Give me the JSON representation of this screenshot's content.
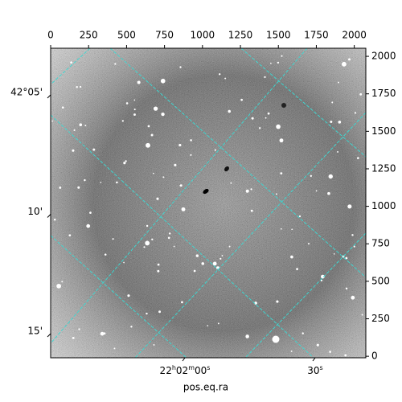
{
  "chart_data": {
    "type": "image",
    "x_label": "pos.eq.ra",
    "xlim": [
      0,
      2076
    ],
    "xticks": [
      0,
      250,
      500,
      750,
      1000,
      1250,
      1500,
      1750,
      2000
    ],
    "ylim": [
      -10,
      2054
    ],
    "yticks": [
      0,
      250,
      500,
      750,
      1000,
      1250,
      1500,
      1750,
      2000
    ],
    "dec_ticks": [
      {
        "value": 5,
        "label": "42°05'"
      },
      {
        "value": 10,
        "label": "10'"
      },
      {
        "value": 15,
        "label": "15'"
      }
    ],
    "ra_ticks": [
      {
        "value": 0,
        "label": "22h02m00s"
      },
      {
        "value": 30,
        "label": "30s"
      }
    ],
    "grid": true,
    "grid_color": "#3fd6d0",
    "colormap": "gray"
  }
}
